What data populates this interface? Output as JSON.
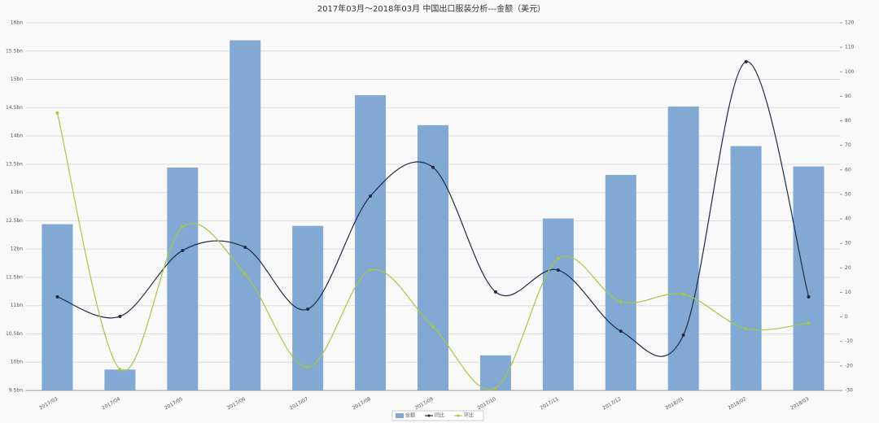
{
  "chart_data": {
    "type": "bar-line",
    "title": "2017年03月～2018年03月 中国出口服装分析---金额（美元）",
    "categories": [
      "2017/03",
      "2017/04",
      "2017/05",
      "2017/06",
      "2017/07",
      "2017/08",
      "2017/09",
      "2017/10",
      "2017/11",
      "2017/12",
      "2018/01",
      "2018/02",
      "2018/03"
    ],
    "series": [
      {
        "name": "金额",
        "color": "#82a8d4",
        "kind": "bar",
        "axis": "y",
        "values": [
          12.44,
          9.87,
          13.44,
          15.69,
          12.41,
          14.72,
          14.19,
          10.12,
          12.54,
          13.31,
          14.52,
          13.82,
          13.46
        ]
      },
      {
        "name": "同比",
        "color": "#1f2a44",
        "kind": "line",
        "axis": "y2",
        "values": [
          8.2,
          0.2,
          27.1,
          28.4,
          3.2,
          49.3,
          61,
          10.2,
          19.1,
          -5.8,
          -7.4,
          104.1,
          8.2
        ]
      },
      {
        "name": "环比",
        "color": "#a8c83c",
        "kind": "line",
        "axis": "y2",
        "values": [
          83.2,
          -21.4,
          36.7,
          17.5,
          -20.4,
          19.1,
          -4.1,
          -29,
          23.8,
          6.2,
          9.2,
          -4.8,
          -2.5
        ]
      }
    ],
    "ylim": [
      9.5,
      16
    ],
    "yticks": [
      {
        "value": 9.5,
        "label": "9.5bn"
      },
      {
        "value": 10,
        "label": "10bn"
      },
      {
        "value": 10.5,
        "label": "10.5bn"
      },
      {
        "value": 11,
        "label": "11bn"
      },
      {
        "value": 11.5,
        "label": "11.5bn"
      },
      {
        "value": 12,
        "label": "12bn"
      },
      {
        "value": 12.5,
        "label": "12.5bn"
      },
      {
        "value": 13,
        "label": "13bn"
      },
      {
        "value": 13.5,
        "label": "13.5bn"
      },
      {
        "value": 14,
        "label": "14bn"
      },
      {
        "value": 14.5,
        "label": "14.5bn"
      },
      {
        "value": 15,
        "label": "15bn"
      },
      {
        "value": 15.5,
        "label": "15.5bn"
      },
      {
        "value": 16,
        "label": "16bn"
      }
    ],
    "y2lim": [
      -30,
      120
    ],
    "y2ticks": [
      -30,
      -20,
      -10,
      0,
      10,
      20,
      30,
      40,
      50,
      60,
      70,
      80,
      90,
      100,
      110,
      120
    ],
    "grid": true,
    "legend": "bottom"
  }
}
